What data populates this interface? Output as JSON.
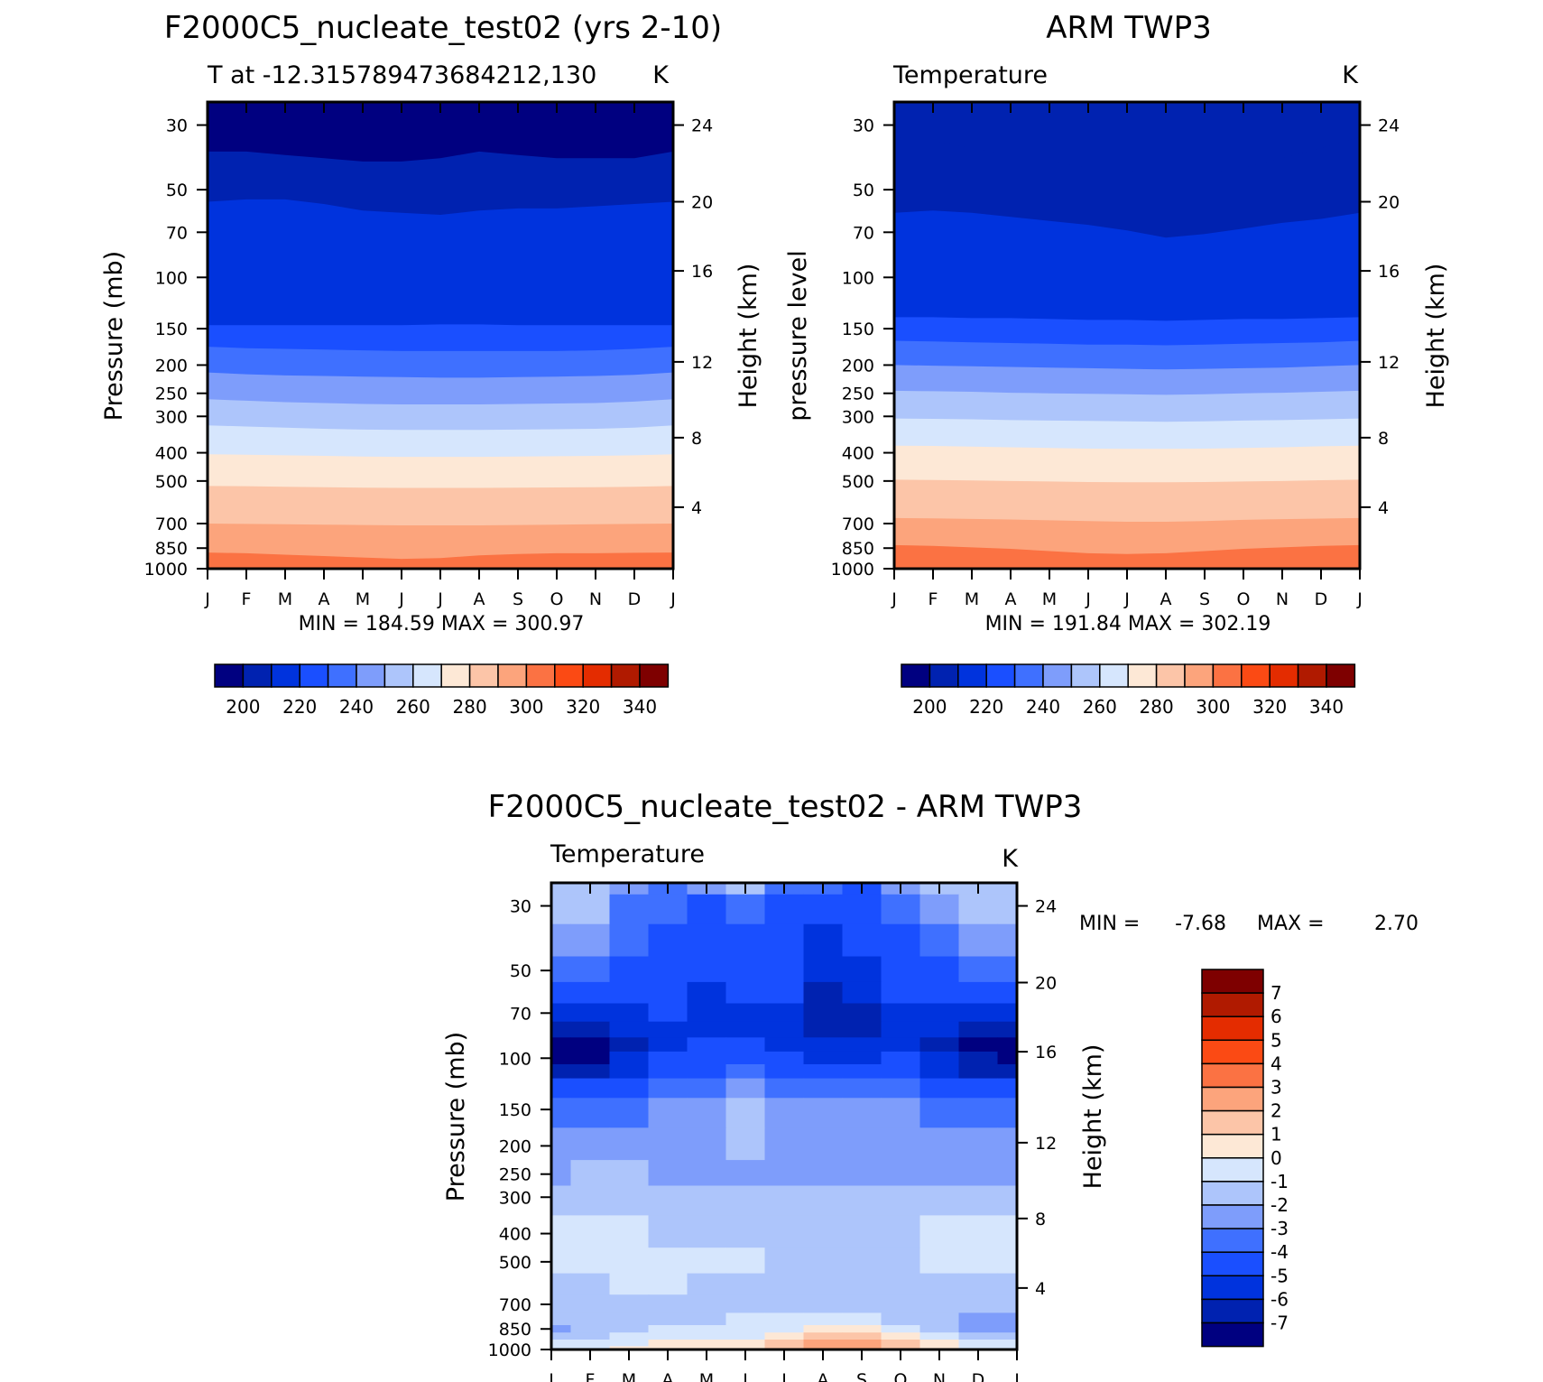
{
  "chart_data": [
    {
      "type": "heatmap",
      "title": "F2000C5_nucleate_test02 (yrs 2-10)",
      "subtitle_left": "T at -12.315789473684212,130",
      "units": "K",
      "ylabel": "Pressure (mb)",
      "ylabel_right": "Height (km)",
      "x_ticks": [
        "J",
        "F",
        "M",
        "A",
        "M",
        "J",
        "J",
        "A",
        "S",
        "O",
        "N",
        "D",
        "J"
      ],
      "y_ticks": [
        "30",
        "50",
        "70",
        "100",
        "150",
        "200",
        "250",
        "300",
        "400",
        "500",
        "700",
        "850",
        "1000"
      ],
      "y_ticks_right": [
        "24",
        "20",
        "16",
        "12",
        "8",
        "4"
      ],
      "stats": "MIN = 184.59 MAX = 300.97",
      "ylim": [
        25,
        1000
      ],
      "bands": [
        {
          "upper_mb": [
            31,
            31,
            31,
            31,
            31,
            31,
            31,
            31,
            31,
            31,
            31,
            31,
            31
          ],
          "level": 0
        },
        {
          "upper_mb": [
            37,
            37,
            38,
            39,
            40,
            40,
            39,
            37,
            38,
            39,
            39,
            39,
            37
          ],
          "level": 1
        },
        {
          "upper_mb": [
            55,
            54,
            54,
            56,
            59,
            60,
            61,
            59,
            58,
            58,
            57,
            56,
            55
          ],
          "level": 2
        },
        {
          "upper_mb": [
            146,
            146,
            146,
            146,
            146,
            146,
            145,
            145,
            146,
            146,
            146,
            146,
            146
          ],
          "level": 3
        },
        {
          "upper_mb": [
            173,
            175,
            176,
            177,
            178,
            179,
            179,
            179,
            179,
            179,
            178,
            176,
            173
          ],
          "level": 4
        },
        {
          "upper_mb": [
            212,
            215,
            217,
            218,
            219,
            220,
            221,
            221,
            220,
            219,
            218,
            216,
            212
          ],
          "level": 5
        },
        {
          "upper_mb": [
            262,
            265,
            268,
            270,
            272,
            273,
            273,
            273,
            272,
            271,
            270,
            267,
            262
          ],
          "level": 6
        },
        {
          "upper_mb": [
            322,
            325,
            328,
            331,
            333,
            334,
            334,
            334,
            333,
            332,
            331,
            328,
            322
          ],
          "level": 7
        },
        {
          "upper_mb": [
            405,
            406,
            408,
            410,
            412,
            413,
            413,
            413,
            412,
            411,
            410,
            408,
            405
          ],
          "level": 8
        },
        {
          "upper_mb": [
            520,
            521,
            523,
            525,
            527,
            528,
            528,
            528,
            527,
            526,
            525,
            523,
            520
          ],
          "level": 9
        },
        {
          "upper_mb": [
            700,
            702,
            704,
            706,
            708,
            710,
            710,
            710,
            708,
            706,
            704,
            702,
            700
          ],
          "level": 10
        },
        {
          "upper_mb": [
            880,
            885,
            895,
            905,
            915,
            925,
            920,
            900,
            890,
            885,
            885,
            882,
            880
          ],
          "level": 11
        }
      ]
    },
    {
      "type": "heatmap",
      "title": "ARM TWP3",
      "subtitle_left": "Temperature",
      "units": "K",
      "ylabel": "pressure level",
      "ylabel_right": "Height (km)",
      "x_ticks": [
        "J",
        "F",
        "M",
        "A",
        "M",
        "J",
        "J",
        "A",
        "S",
        "O",
        "N",
        "D",
        "J"
      ],
      "y_ticks": [
        "30",
        "50",
        "70",
        "100",
        "150",
        "200",
        "250",
        "300",
        "400",
        "500",
        "700",
        "850",
        "1000"
      ],
      "y_ticks_right": [
        "24",
        "20",
        "16",
        "12",
        "8",
        "4"
      ],
      "stats": "MIN = 191.84 MAX = 302.19",
      "ylim": [
        25,
        1000
      ],
      "bands": [
        {
          "upper_mb": [
            25,
            25,
            25,
            25,
            25,
            25,
            25,
            25,
            25,
            25,
            25,
            25,
            25
          ],
          "level": 1
        },
        {
          "upper_mb": [
            33,
            34,
            36,
            38,
            40,
            42,
            43,
            44,
            44,
            42,
            39,
            36,
            33
          ],
          "level": 1
        },
        {
          "upper_mb": [
            60,
            59,
            60,
            62,
            64,
            66,
            69,
            73,
            71,
            68,
            65,
            63,
            60
          ],
          "level": 2
        },
        {
          "upper_mb": [
            137,
            137,
            138,
            138,
            139,
            140,
            140,
            141,
            140,
            139,
            139,
            138,
            137
          ],
          "level": 3
        },
        {
          "upper_mb": [
            165,
            166,
            167,
            168,
            169,
            170,
            170,
            171,
            170,
            169,
            168,
            167,
            165
          ],
          "level": 4
        },
        {
          "upper_mb": [
            200,
            201,
            202,
            203,
            204,
            205,
            206,
            207,
            206,
            205,
            204,
            202,
            200
          ],
          "level": 5
        },
        {
          "upper_mb": [
            245,
            246,
            247,
            249,
            250,
            251,
            252,
            253,
            252,
            250,
            249,
            247,
            245
          ],
          "level": 6
        },
        {
          "upper_mb": [
            305,
            306,
            307,
            309,
            310,
            311,
            312,
            313,
            312,
            310,
            309,
            307,
            305
          ],
          "level": 7
        },
        {
          "upper_mb": [
            378,
            379,
            381,
            383,
            385,
            387,
            388,
            388,
            387,
            385,
            383,
            380,
            378
          ],
          "level": 8
        },
        {
          "upper_mb": [
            495,
            496,
            498,
            500,
            502,
            504,
            505,
            505,
            504,
            502,
            500,
            497,
            495
          ],
          "level": 9
        },
        {
          "upper_mb": [
            670,
            672,
            675,
            678,
            682,
            686,
            690,
            690,
            686,
            680,
            676,
            673,
            670
          ],
          "level": 10
        },
        {
          "upper_mb": [
            830,
            835,
            845,
            855,
            870,
            885,
            890,
            885,
            870,
            855,
            845,
            835,
            830
          ],
          "level": 11
        }
      ]
    },
    {
      "type": "heatmap",
      "title": "F2000C5_nucleate_test02 - ARM TWP3",
      "subtitle_left": "Temperature",
      "units": "K",
      "ylabel": "Pressure (mb)",
      "ylabel_right": "Height (km)",
      "x_ticks": [
        "J",
        "F",
        "M",
        "A",
        "M",
        "J",
        "J",
        "A",
        "S",
        "O",
        "N",
        "D",
        "J"
      ],
      "y_ticks": [
        "30",
        "50",
        "70",
        "100",
        "150",
        "200",
        "250",
        "300",
        "400",
        "500",
        "700",
        "850",
        "1000"
      ],
      "y_ticks_right": [
        "24",
        "20",
        "16",
        "12",
        "8",
        "4"
      ],
      "stats_min_label": "MIN =",
      "stats_min": "-7.68",
      "stats_max_label": "MAX =",
      "stats_max": "2.70",
      "ylim": [
        25,
        1000
      ],
      "pressure_levels_mb": [
        25,
        30,
        40,
        50,
        60,
        70,
        80,
        90,
        100,
        110,
        125,
        150,
        200,
        250,
        300,
        400,
        500,
        600,
        700,
        800,
        850,
        900,
        950,
        1000
      ],
      "diff_values": [
        [
          -2,
          -2,
          -3,
          -4,
          -3,
          -2,
          -4,
          -4,
          -5,
          -3,
          -2,
          -2,
          -2
        ],
        [
          -2,
          -2,
          -4,
          -4,
          -5,
          -4,
          -5,
          -5,
          -5,
          -4,
          -3,
          -2,
          -2
        ],
        [
          -3,
          -3,
          -4,
          -5,
          -5,
          -5,
          -5,
          -6,
          -5,
          -5,
          -4,
          -3,
          -3
        ],
        [
          -4,
          -4,
          -5,
          -5,
          -5,
          -5,
          -5,
          -6,
          -6,
          -5,
          -5,
          -4,
          -4
        ],
        [
          -5,
          -5,
          -5,
          -5,
          -6,
          -5,
          -5,
          -7,
          -6,
          -5,
          -5,
          -5,
          -5
        ],
        [
          -6,
          -6,
          -6,
          -5,
          -6,
          -6,
          -6,
          -7,
          -7,
          -6,
          -6,
          -6,
          -6
        ],
        [
          -7,
          -7,
          -6,
          -6,
          -6,
          -6,
          -6,
          -7,
          -7,
          -6,
          -6,
          -7,
          -7
        ],
        [
          -8,
          -8,
          -7,
          -6,
          -5,
          -5,
          -6,
          -6,
          -6,
          -6,
          -7,
          -8,
          -8
        ],
        [
          -8,
          -8,
          -6,
          -5,
          -5,
          -5,
          -5,
          -6,
          -6,
          -5,
          -6,
          -7,
          -8
        ],
        [
          -7,
          -7,
          -6,
          -5,
          -5,
          -4,
          -5,
          -5,
          -5,
          -5,
          -6,
          -7,
          -7
        ],
        [
          -5,
          -5,
          -5,
          -4,
          -4,
          -3,
          -4,
          -4,
          -4,
          -4,
          -5,
          -5,
          -5
        ],
        [
          -4,
          -4,
          -4,
          -3,
          -3,
          -2,
          -3,
          -3,
          -3,
          -3,
          -4,
          -4,
          -4
        ],
        [
          -3,
          -3,
          -3,
          -3,
          -3,
          -2,
          -3,
          -3,
          -3,
          -3,
          -3,
          -3,
          -3
        ],
        [
          -3,
          -2,
          -2,
          -3,
          -3,
          -3,
          -3,
          -3,
          -3,
          -3,
          -3,
          -3,
          -3
        ],
        [
          -2,
          -2,
          -2,
          -2,
          -2,
          -2,
          -2,
          -2,
          -2,
          -2,
          -2,
          -2,
          -2
        ],
        [
          -1,
          -1,
          -1,
          -2,
          -2,
          -2,
          -2,
          -2,
          -2,
          -2,
          -1,
          -1,
          -1
        ],
        [
          -1,
          -1,
          -1,
          -1,
          -1,
          -1,
          -2,
          -2,
          -2,
          -2,
          -1,
          -1,
          -1
        ],
        [
          -2,
          -2,
          -1,
          -1,
          -2,
          -2,
          -2,
          -2,
          -2,
          -2,
          -2,
          -2,
          -2
        ],
        [
          -2,
          -2,
          -2,
          -2,
          -2,
          -2,
          -2,
          -2,
          -2,
          -2,
          -2,
          -2,
          -2
        ],
        [
          -2,
          -2,
          -2,
          -2,
          -2,
          -1,
          -1,
          -1,
          -1,
          -2,
          -2,
          -3,
          -3
        ],
        [
          -3,
          -2,
          -2,
          -1,
          -1,
          -1,
          -1,
          0,
          0,
          -1,
          -2,
          -3,
          -3
        ],
        [
          -2,
          -2,
          -1,
          -1,
          -1,
          -1,
          0,
          1,
          1,
          0,
          -1,
          -2,
          -2
        ],
        [
          -1,
          -1,
          -1,
          0,
          0,
          0,
          1,
          2,
          2,
          1,
          0,
          -1,
          -1
        ],
        [
          -1,
          -1,
          0,
          0,
          0,
          0,
          1,
          2,
          2,
          1,
          0,
          -1,
          -1
        ]
      ],
      "colorbar_labels": [
        "7",
        "6",
        "5",
        "4",
        "3",
        "2",
        "1",
        "0",
        "-1",
        "-2",
        "-3",
        "-4",
        "-5",
        "-6",
        "-7"
      ]
    }
  ],
  "colorbar_abs_labels": [
    "200",
    "220",
    "240",
    "260",
    "280",
    "300",
    "320",
    "340"
  ],
  "colors": {
    "abs": [
      "#000080",
      "#0022b0",
      "#0033dd",
      "#1a4fff",
      "#3f70ff",
      "#7e9dfb",
      "#adc5fb",
      "#d6e6fd",
      "#fde8d6",
      "#fcc5a8",
      "#fca47c",
      "#fb7243",
      "#fb4a14",
      "#e42c00",
      "#b01a00",
      "#7e0000"
    ],
    "diff": [
      "#000080",
      "#0022b0",
      "#0033dd",
      "#1a4fff",
      "#3f70ff",
      "#7e9dfb",
      "#adc5fb",
      "#d6e6fd",
      "#fde8d6",
      "#fcc5a8",
      "#fca47c",
      "#fb7243",
      "#fb4a14",
      "#e42c00",
      "#b01a00",
      "#7e0000"
    ]
  }
}
